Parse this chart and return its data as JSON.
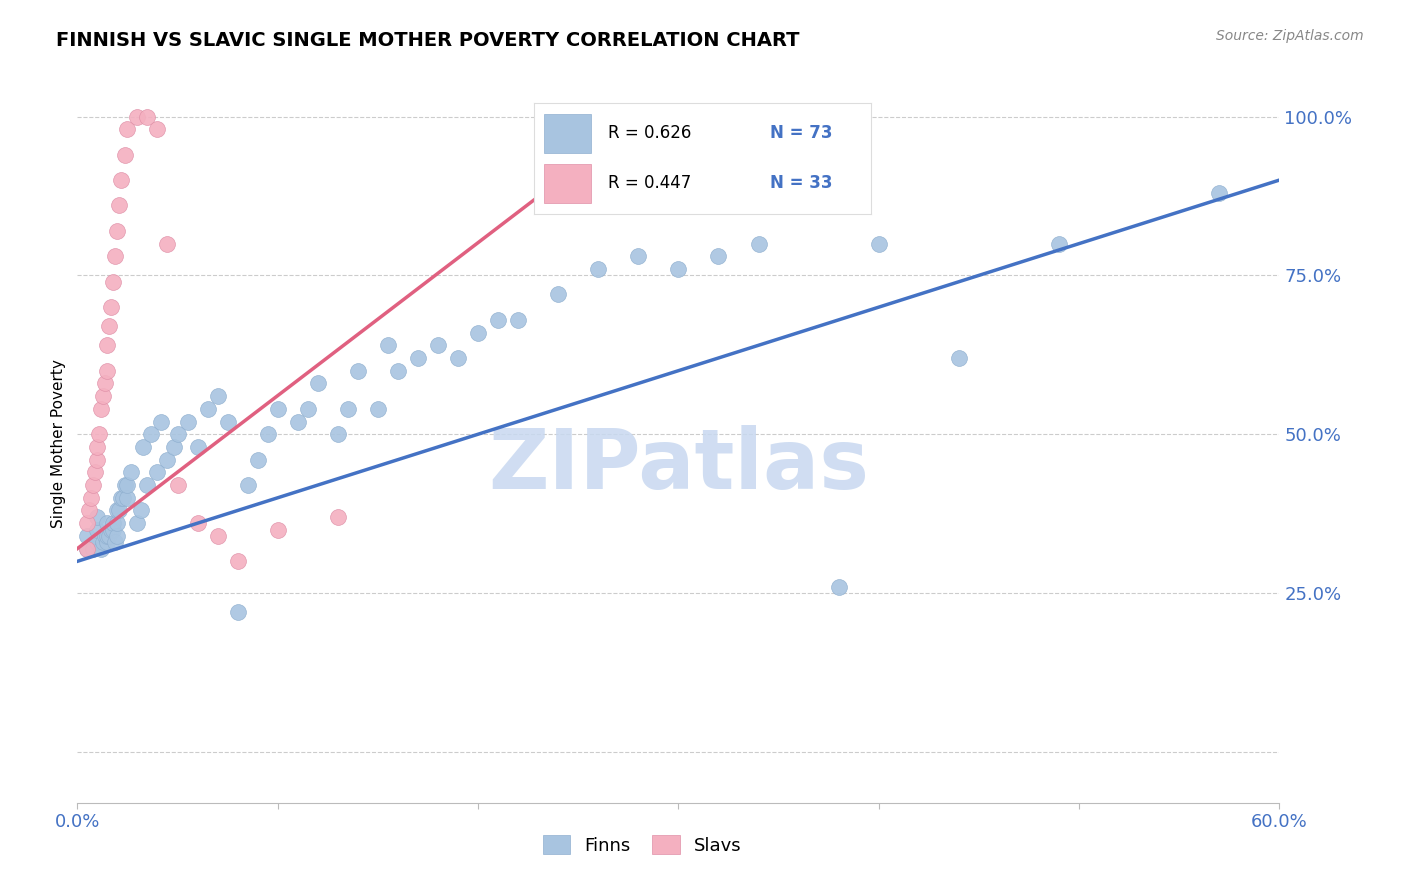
{
  "title": "FINNISH VS SLAVIC SINGLE MOTHER POVERTY CORRELATION CHART",
  "source": "Source: ZipAtlas.com",
  "ylabel_label": "Single Mother Poverty",
  "xlim": [
    0.0,
    0.6
  ],
  "ylim": [
    0.0,
    1.05
  ],
  "legend_blue_r": "R = 0.626",
  "legend_blue_n": "N = 73",
  "legend_pink_r": "R = 0.447",
  "legend_pink_n": "N = 33",
  "dot_color_blue": "#a8c4e0",
  "dot_edge_blue": "#90b0d0",
  "dot_color_pink": "#f4b0c0",
  "dot_edge_pink": "#e090a8",
  "line_color_blue": "#4472c4",
  "line_color_pink": "#e06080",
  "watermark": "ZIPatlas",
  "watermark_color": "#c8d8f0",
  "grid_color": "#cccccc",
  "ytick_labels": [
    "",
    "25.0%",
    "50.0%",
    "75.0%",
    "100.0%"
  ],
  "ytick_vals": [
    0.0,
    0.25,
    0.5,
    0.75,
    1.0
  ],
  "tick_color": "#4472c4",
  "finns_x": [
    0.005,
    0.005,
    0.008,
    0.01,
    0.01,
    0.01,
    0.012,
    0.013,
    0.014,
    0.015,
    0.015,
    0.015,
    0.016,
    0.017,
    0.018,
    0.018,
    0.019,
    0.02,
    0.02,
    0.02,
    0.021,
    0.022,
    0.023,
    0.024,
    0.025,
    0.025,
    0.027,
    0.03,
    0.032,
    0.033,
    0.035,
    0.037,
    0.04,
    0.042,
    0.045,
    0.048,
    0.05,
    0.055,
    0.06,
    0.065,
    0.07,
    0.075,
    0.08,
    0.085,
    0.09,
    0.095,
    0.1,
    0.11,
    0.115,
    0.12,
    0.13,
    0.135,
    0.14,
    0.15,
    0.155,
    0.16,
    0.17,
    0.18,
    0.19,
    0.2,
    0.21,
    0.22,
    0.24,
    0.26,
    0.28,
    0.3,
    0.32,
    0.34,
    0.38,
    0.4,
    0.44,
    0.49,
    0.57
  ],
  "finns_y": [
    0.32,
    0.34,
    0.32,
    0.33,
    0.35,
    0.37,
    0.32,
    0.33,
    0.34,
    0.33,
    0.34,
    0.36,
    0.34,
    0.35,
    0.35,
    0.36,
    0.33,
    0.34,
    0.36,
    0.38,
    0.38,
    0.4,
    0.4,
    0.42,
    0.4,
    0.42,
    0.44,
    0.36,
    0.38,
    0.48,
    0.42,
    0.5,
    0.44,
    0.52,
    0.46,
    0.48,
    0.5,
    0.52,
    0.48,
    0.54,
    0.56,
    0.52,
    0.22,
    0.42,
    0.46,
    0.5,
    0.54,
    0.52,
    0.54,
    0.58,
    0.5,
    0.54,
    0.6,
    0.54,
    0.64,
    0.6,
    0.62,
    0.64,
    0.62,
    0.66,
    0.68,
    0.68,
    0.72,
    0.76,
    0.78,
    0.76,
    0.78,
    0.8,
    0.26,
    0.8,
    0.62,
    0.8,
    0.88
  ],
  "slavs_x": [
    0.005,
    0.005,
    0.006,
    0.007,
    0.008,
    0.009,
    0.01,
    0.01,
    0.011,
    0.012,
    0.013,
    0.014,
    0.015,
    0.015,
    0.016,
    0.017,
    0.018,
    0.019,
    0.02,
    0.021,
    0.022,
    0.024,
    0.025,
    0.03,
    0.035,
    0.04,
    0.045,
    0.05,
    0.06,
    0.07,
    0.08,
    0.1,
    0.13
  ],
  "slavs_y": [
    0.32,
    0.36,
    0.38,
    0.4,
    0.42,
    0.44,
    0.46,
    0.48,
    0.5,
    0.54,
    0.56,
    0.58,
    0.6,
    0.64,
    0.67,
    0.7,
    0.74,
    0.78,
    0.82,
    0.86,
    0.9,
    0.94,
    0.98,
    1.0,
    1.0,
    0.98,
    0.8,
    0.42,
    0.36,
    0.34,
    0.3,
    0.35,
    0.37
  ],
  "blue_line_x": [
    0.0,
    0.6
  ],
  "blue_line_y": [
    0.3,
    0.9
  ],
  "pink_line_x": [
    0.0,
    0.27
  ],
  "pink_line_y": [
    0.32,
    0.97
  ]
}
